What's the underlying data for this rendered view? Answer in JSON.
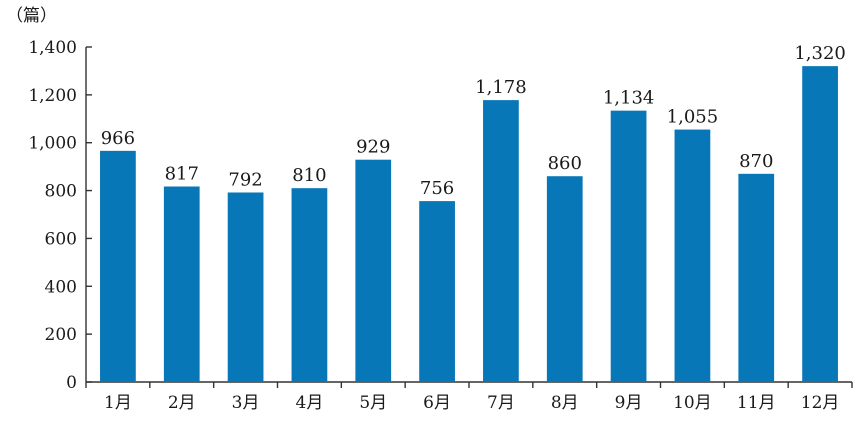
{
  "chart_data": {
    "type": "bar",
    "unit_label": "（篇）",
    "categories": [
      "1月",
      "2月",
      "3月",
      "4月",
      "5月",
      "6月",
      "7月",
      "8月",
      "9月",
      "10月",
      "11月",
      "12月"
    ],
    "values": [
      966,
      817,
      792,
      810,
      929,
      756,
      1178,
      860,
      1134,
      1055,
      870,
      1320
    ],
    "value_labels": [
      "966",
      "817",
      "792",
      "810",
      "929",
      "756",
      "1,178",
      "860",
      "1,134",
      "1,055",
      "870",
      "1,320"
    ],
    "ylim": [
      0,
      1400
    ],
    "y_ticks": [
      0,
      200,
      400,
      600,
      800,
      1000,
      1200,
      1400
    ],
    "y_tick_labels": [
      "0",
      "200",
      "400",
      "600",
      "800",
      "1,000",
      "1,200",
      "1,400"
    ],
    "grid": false,
    "bar_color": "#0877b8"
  }
}
